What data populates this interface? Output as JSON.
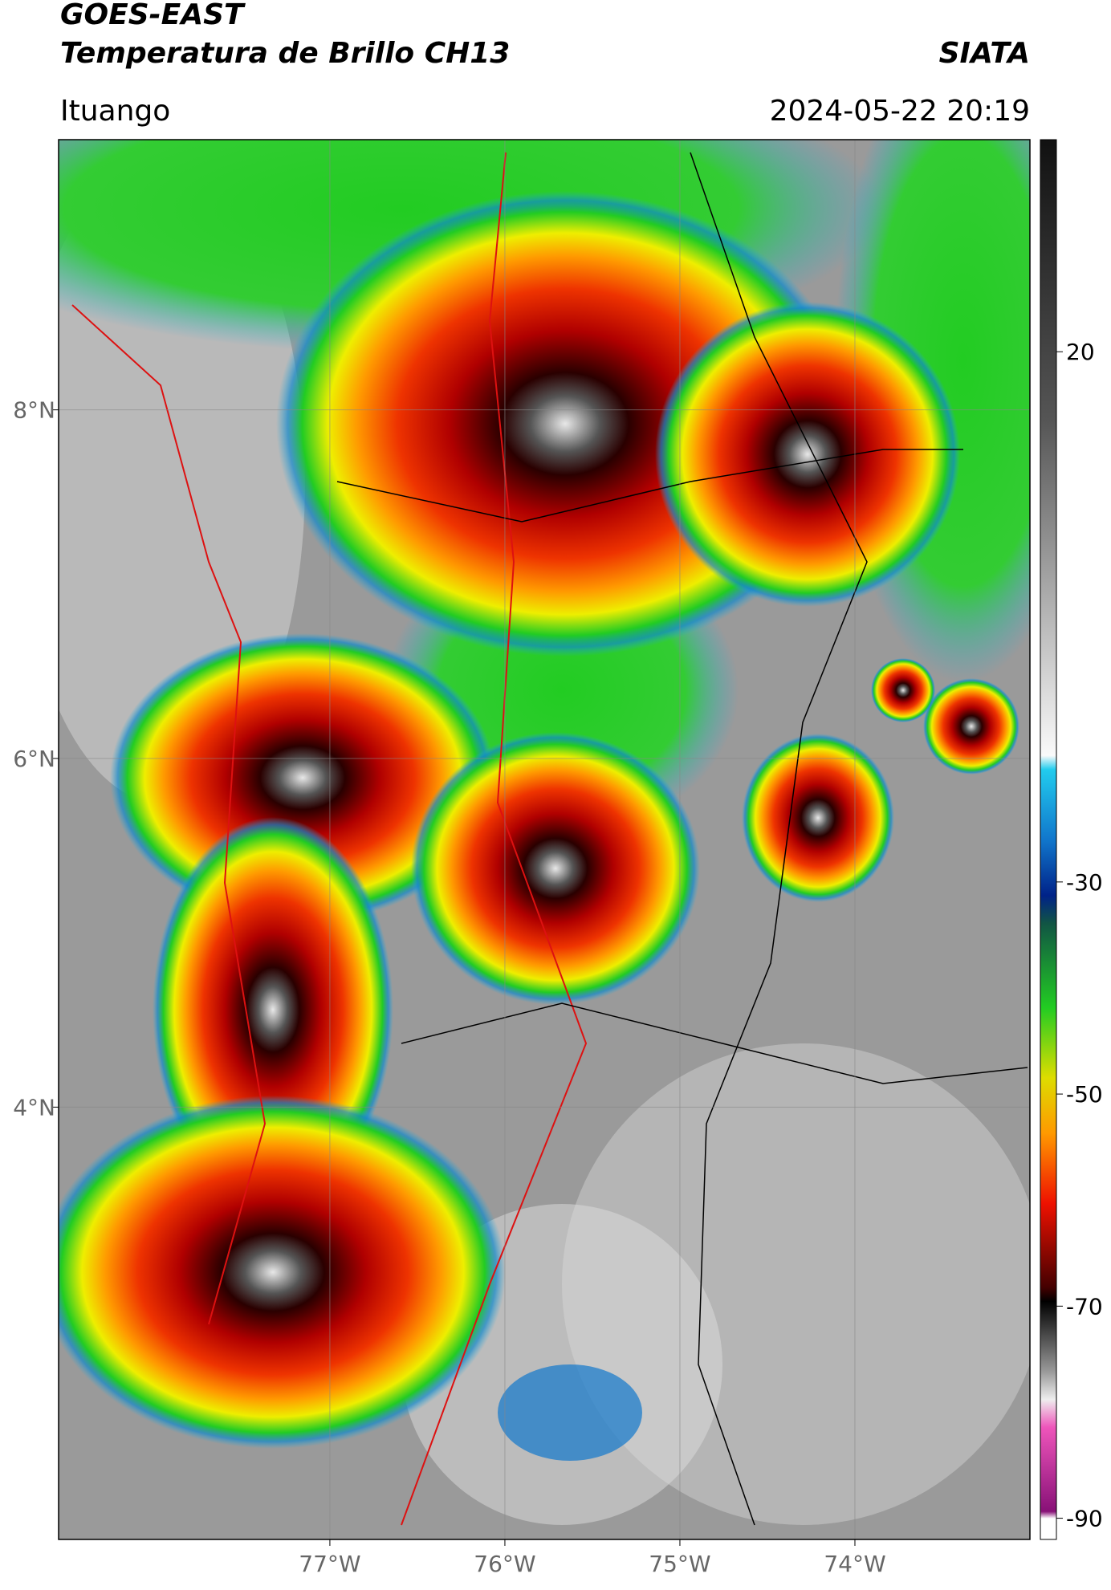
{
  "header": {
    "title": "GOES-EAST",
    "subtitle": "Temperatura de Brillo CH13",
    "brand": "SIATA",
    "location": "Ituango",
    "timestamp": "2024-05-22 20:19"
  },
  "map": {
    "xlim": [
      -78.55,
      -73
    ],
    "ylim": [
      1.52,
      9.55
    ],
    "xticks": [
      {
        "value": -77,
        "label": "77°W"
      },
      {
        "value": -76,
        "label": "76°W"
      },
      {
        "value": -75,
        "label": "75°W"
      },
      {
        "value": -74,
        "label": "74°W"
      }
    ],
    "yticks": [
      {
        "value": 8,
        "label": "8°N"
      },
      {
        "value": 6,
        "label": "6°N"
      },
      {
        "value": 4,
        "label": "4°N"
      }
    ],
    "grid": true
  },
  "colorbar": {
    "lim": [
      -92,
      40
    ],
    "ticks": [
      20,
      -30,
      -50,
      -70,
      -90
    ]
  }
}
